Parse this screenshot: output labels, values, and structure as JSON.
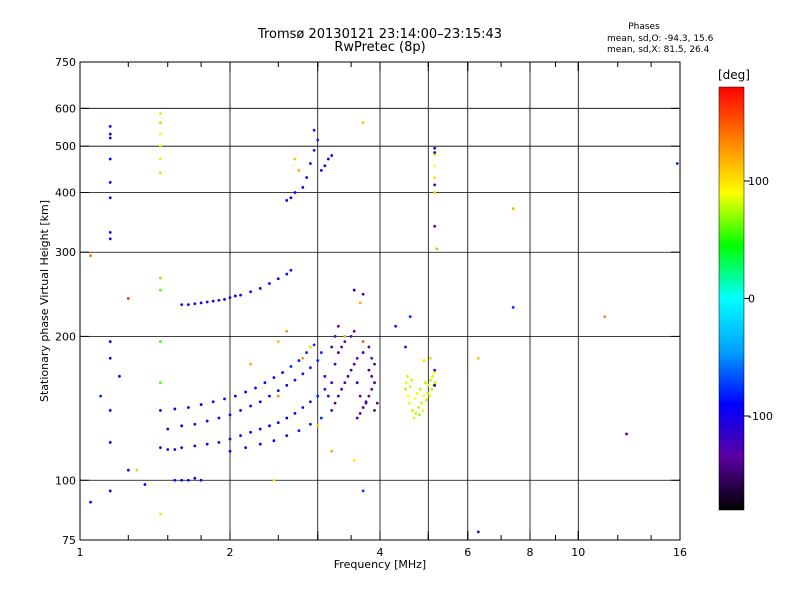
{
  "header": {
    "title_line1": "Tromsø 20130121 23:14:00–23:15:43",
    "title_line2": "RwPretec (8p)",
    "phases_title": "Phases",
    "phases_o": "mean, sd,O: -94.3, 15.6",
    "phases_x": "mean, sd,X:  81.5, 26.4"
  },
  "chart_data": {
    "type": "scatter",
    "xlabel": "Frequency [MHz]",
    "ylabel": "Stationary phase Virtual Height [km]",
    "x_scale": "log",
    "y_scale": "log",
    "xlim": [
      1,
      16
    ],
    "ylim": [
      75,
      750
    ],
    "xticks": [
      1,
      2,
      4,
      6,
      8,
      10,
      16
    ],
    "xgrid": [
      2,
      3,
      4,
      5,
      6,
      8,
      10
    ],
    "xminor": [
      1.25,
      1.5,
      1.75,
      2.5,
      3,
      3.5,
      5,
      7,
      9,
      12,
      14
    ],
    "yticks": [
      75,
      100,
      200,
      300,
      400,
      500,
      600,
      750
    ],
    "ygrid": [
      100,
      200,
      300,
      400,
      500,
      600
    ],
    "grid": true,
    "colorbar": {
      "label": "[deg]",
      "range": [
        -180,
        180
      ],
      "ticks": [
        -100,
        0,
        100
      ],
      "colors": [
        "#000000",
        "#5a00a0",
        "#0000ff",
        "#00a0ff",
        "#00ffff",
        "#00ff00",
        "#ffff00",
        "#ff8000",
        "#ff0000"
      ]
    },
    "series": [
      {
        "mode": "X",
        "points": [
          [
            1.45,
            585,
            80
          ],
          [
            1.45,
            560,
            70
          ],
          [
            1.45,
            530,
            85
          ],
          [
            1.45,
            500,
            75
          ],
          [
            1.45,
            470,
            80
          ],
          [
            1.45,
            440,
            75
          ],
          [
            1.45,
            265,
            65
          ],
          [
            1.45,
            250,
            60
          ],
          [
            1.45,
            195,
            55
          ],
          [
            1.45,
            160,
            60
          ],
          [
            1.45,
            85,
            80
          ],
          [
            5.15,
            480,
            80
          ],
          [
            5.15,
            455,
            90
          ],
          [
            5.15,
            430,
            100
          ],
          [
            5.15,
            400,
            110
          ],
          [
            5.2,
            305,
            120
          ],
          [
            3.7,
            560,
            110
          ],
          [
            3.65,
            235,
            120
          ],
          [
            3.7,
            195,
            150
          ],
          [
            7.4,
            370,
            120
          ],
          [
            6.3,
            180,
            110
          ],
          [
            11.3,
            220,
            130
          ],
          [
            1.25,
            240,
            165
          ],
          [
            1.05,
            295,
            140
          ],
          [
            3.55,
            110,
            100
          ],
          [
            4.5,
            155,
            75
          ],
          [
            4.52,
            160,
            85
          ],
          [
            4.54,
            165,
            80
          ],
          [
            4.56,
            150,
            90
          ],
          [
            4.58,
            145,
            85
          ],
          [
            4.6,
            157,
            80
          ],
          [
            4.63,
            162,
            80
          ],
          [
            4.65,
            140,
            75
          ],
          [
            4.68,
            135,
            85
          ],
          [
            4.7,
            148,
            90
          ],
          [
            4.72,
            138,
            80
          ],
          [
            4.75,
            152,
            85
          ],
          [
            4.78,
            142,
            80
          ],
          [
            4.8,
            137,
            70
          ],
          [
            4.82,
            155,
            75
          ],
          [
            4.85,
            145,
            80
          ],
          [
            4.88,
            140,
            85
          ],
          [
            4.9,
            150,
            90
          ],
          [
            4.93,
            160,
            75
          ],
          [
            4.95,
            147,
            80
          ],
          [
            4.98,
            152,
            85
          ],
          [
            5.0,
            158,
            80
          ],
          [
            5.03,
            150,
            85
          ],
          [
            5.05,
            162,
            80
          ],
          [
            5.08,
            155,
            75
          ],
          [
            5.1,
            165,
            80
          ],
          [
            5.12,
            158,
            85
          ],
          [
            5.14,
            168,
            90
          ],
          [
            5.16,
            160,
            80
          ],
          [
            4.9,
            178,
            100
          ],
          [
            5.05,
            180,
            105
          ],
          [
            2.5,
            195,
            115
          ],
          [
            2.9,
            190,
            105
          ],
          [
            2.2,
            175,
            120
          ],
          [
            2.6,
            205,
            130
          ],
          [
            3.0,
            130,
            110
          ],
          [
            2.8,
            180,
            125
          ],
          [
            3.4,
            200,
            115
          ],
          [
            2.5,
            150,
            130
          ],
          [
            3.2,
            115,
            120
          ],
          [
            2.7,
            470,
            110
          ],
          [
            2.75,
            445,
            120
          ],
          [
            2.45,
            100,
            100
          ],
          [
            1.3,
            105,
            110
          ]
        ]
      },
      {
        "mode": "O",
        "points": [
          [
            1.15,
            550,
            -100
          ],
          [
            1.15,
            530,
            -110
          ],
          [
            1.15,
            520,
            -95
          ],
          [
            1.15,
            470,
            -90
          ],
          [
            1.15,
            420,
            -95
          ],
          [
            1.15,
            390,
            -90
          ],
          [
            1.15,
            330,
            -100
          ],
          [
            1.15,
            320,
            -110
          ],
          [
            1.15,
            195,
            -90
          ],
          [
            1.15,
            180,
            -100
          ],
          [
            1.15,
            140,
            -95
          ],
          [
            1.15,
            120,
            -100
          ],
          [
            1.15,
            95,
            -90
          ],
          [
            1.1,
            150,
            -80
          ],
          [
            1.05,
            90,
            -85
          ],
          [
            1.2,
            165,
            -105
          ],
          [
            1.25,
            105,
            -95
          ],
          [
            1.35,
            98,
            -90
          ],
          [
            5.15,
            495,
            -105
          ],
          [
            5.15,
            485,
            -110
          ],
          [
            5.15,
            415,
            -120
          ],
          [
            5.15,
            340,
            -130
          ],
          [
            5.15,
            170,
            -110
          ],
          [
            5.15,
            158,
            -100
          ],
          [
            4.3,
            210,
            -85
          ],
          [
            4.6,
            220,
            -80
          ],
          [
            4.5,
            190,
            -120
          ],
          [
            3.7,
            245,
            -130
          ],
          [
            3.7,
            95,
            -75
          ],
          [
            3.55,
            250,
            -115
          ],
          [
            3.6,
            160,
            -110
          ],
          [
            7.4,
            230,
            -80
          ],
          [
            6.3,
            78,
            -115
          ],
          [
            12.5,
            125,
            -130
          ],
          [
            15.8,
            460,
            -80
          ],
          [
            1.6,
            233,
            -110
          ],
          [
            1.65,
            233,
            -108
          ],
          [
            1.7,
            234,
            -108
          ],
          [
            1.75,
            235,
            -105
          ],
          [
            1.8,
            236,
            -105
          ],
          [
            1.85,
            237,
            -102
          ],
          [
            1.9,
            238,
            -102
          ],
          [
            1.95,
            239,
            -100
          ],
          [
            2.0,
            241,
            -98
          ],
          [
            2.05,
            243,
            -98
          ],
          [
            2.1,
            244,
            -96
          ],
          [
            2.2,
            248,
            -95
          ],
          [
            2.3,
            252,
            -92
          ],
          [
            2.4,
            258,
            -90
          ],
          [
            2.5,
            264,
            -88
          ],
          [
            2.6,
            270,
            -85
          ],
          [
            2.65,
            275,
            -85
          ],
          [
            2.6,
            385,
            -95
          ],
          [
            2.65,
            390,
            -95
          ],
          [
            2.7,
            400,
            -92
          ],
          [
            2.8,
            410,
            -90
          ],
          [
            2.85,
            430,
            -88
          ],
          [
            2.9,
            460,
            -85
          ],
          [
            2.95,
            490,
            -85
          ],
          [
            3.0,
            515,
            -82
          ],
          [
            2.95,
            540,
            -80
          ],
          [
            3.05,
            445,
            -95
          ],
          [
            3.1,
            455,
            -92
          ],
          [
            3.15,
            470,
            -92
          ],
          [
            3.2,
            478,
            -90
          ],
          [
            1.55,
            100,
            -95
          ],
          [
            1.6,
            100,
            -95
          ],
          [
            1.65,
            100,
            -90
          ],
          [
            1.7,
            101,
            -95
          ],
          [
            1.75,
            100,
            -100
          ],
          [
            1.45,
            117,
            -110
          ],
          [
            1.5,
            116,
            -108
          ],
          [
            1.55,
            116,
            -108
          ],
          [
            1.6,
            117,
            -105
          ],
          [
            1.7,
            118,
            -105
          ],
          [
            1.8,
            119,
            -102
          ],
          [
            1.9,
            120,
            -102
          ],
          [
            2.0,
            122,
            -100
          ],
          [
            2.1,
            124,
            -98
          ],
          [
            2.2,
            126,
            -96
          ],
          [
            2.3,
            128,
            -95
          ],
          [
            2.4,
            130,
            -92
          ],
          [
            2.5,
            132,
            -90
          ],
          [
            2.6,
            135,
            -90
          ],
          [
            2.7,
            138,
            -88
          ],
          [
            2.8,
            142,
            -85
          ],
          [
            2.9,
            146,
            -85
          ],
          [
            3.0,
            150,
            -82
          ],
          [
            3.1,
            155,
            -80
          ],
          [
            1.5,
            128,
            -105
          ],
          [
            1.6,
            130,
            -105
          ],
          [
            1.7,
            131,
            -100
          ],
          [
            1.8,
            133,
            -100
          ],
          [
            1.9,
            135,
            -98
          ],
          [
            2.0,
            137,
            -96
          ],
          [
            2.1,
            140,
            -95
          ],
          [
            2.2,
            143,
            -92
          ],
          [
            2.3,
            146,
            -92
          ],
          [
            2.4,
            150,
            -90
          ],
          [
            2.5,
            154,
            -88
          ],
          [
            2.6,
            158,
            -86
          ],
          [
            2.7,
            162,
            -84
          ],
          [
            2.8,
            167,
            -82
          ],
          [
            2.9,
            172,
            -80
          ],
          [
            3.0,
            178,
            -80
          ],
          [
            3.05,
            185,
            -78
          ],
          [
            1.45,
            140,
            -100
          ],
          [
            1.55,
            141,
            -100
          ],
          [
            1.65,
            142,
            -98
          ],
          [
            1.75,
            144,
            -96
          ],
          [
            1.85,
            146,
            -95
          ],
          [
            1.95,
            148,
            -94
          ],
          [
            2.05,
            150,
            -92
          ],
          [
            2.15,
            153,
            -90
          ],
          [
            2.25,
            156,
            -88
          ],
          [
            2.35,
            160,
            -86
          ],
          [
            2.45,
            164,
            -85
          ],
          [
            2.55,
            168,
            -84
          ],
          [
            2.65,
            173,
            -82
          ],
          [
            2.75,
            178,
            -80
          ],
          [
            2.85,
            185,
            -78
          ],
          [
            2.95,
            192,
            -76
          ],
          [
            2.0,
            115,
            -95
          ],
          [
            2.15,
            117,
            -95
          ],
          [
            2.3,
            119,
            -92
          ],
          [
            2.45,
            121,
            -90
          ],
          [
            2.6,
            124,
            -88
          ],
          [
            2.75,
            127,
            -86
          ],
          [
            2.9,
            131,
            -85
          ],
          [
            3.05,
            135,
            -82
          ],
          [
            3.2,
            140,
            -130
          ],
          [
            3.25,
            145,
            -135
          ],
          [
            3.3,
            150,
            -130
          ],
          [
            3.35,
            155,
            -125
          ],
          [
            3.4,
            160,
            -135
          ],
          [
            3.45,
            165,
            -130
          ],
          [
            3.5,
            170,
            -125
          ],
          [
            3.55,
            175,
            -135
          ],
          [
            3.6,
            180,
            -130
          ],
          [
            3.3,
            185,
            -140
          ],
          [
            3.35,
            190,
            -138
          ],
          [
            3.4,
            195,
            -135
          ],
          [
            3.5,
            200,
            -130
          ],
          [
            3.55,
            205,
            -140
          ],
          [
            3.3,
            210,
            -135
          ],
          [
            3.2,
            160,
            -120
          ],
          [
            3.25,
            175,
            -125
          ],
          [
            3.15,
            150,
            -115
          ],
          [
            3.1,
            165,
            -118
          ],
          [
            3.2,
            190,
            -125
          ],
          [
            3.25,
            200,
            -130
          ],
          [
            3.6,
            135,
            -140
          ],
          [
            3.65,
            138,
            -135
          ],
          [
            3.7,
            142,
            -138
          ],
          [
            3.75,
            146,
            -140
          ],
          [
            3.8,
            150,
            -135
          ],
          [
            3.85,
            155,
            -138
          ],
          [
            3.9,
            160,
            -140
          ],
          [
            3.85,
            165,
            -135
          ],
          [
            3.8,
            170,
            -138
          ],
          [
            3.9,
            175,
            -140
          ],
          [
            3.85,
            180,
            -135
          ],
          [
            3.7,
            185,
            -132
          ],
          [
            3.8,
            190,
            -138
          ],
          [
            3.75,
            145,
            -130
          ],
          [
            3.65,
            150,
            -135
          ],
          [
            3.9,
            140,
            -140
          ],
          [
            3.95,
            145,
            -135
          ]
        ]
      }
    ]
  }
}
